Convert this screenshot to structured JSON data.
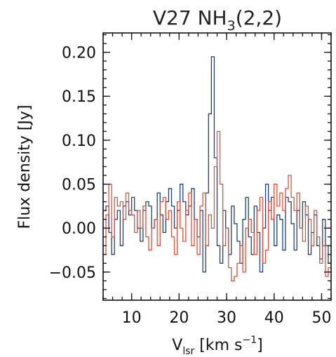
{
  "chart_data": {
    "type": "line",
    "step": true,
    "title": {
      "main": "V27 NH",
      "subscript": "3",
      "suffix": "(2,2)"
    },
    "xlabel": {
      "main": "V",
      "subscript": "lsr",
      "unit_open": " [km s",
      "superscript": "−1",
      "unit_close": "]"
    },
    "ylabel": "Flux density [Jy]",
    "xlim": [
      4,
      52
    ],
    "ylim": [
      -0.082,
      0.222
    ],
    "x_major_ticks": [
      10,
      20,
      30,
      40,
      50
    ],
    "x_minor_step": 2,
    "y_major_ticks": [
      -0.05,
      0.0,
      0.05,
      0.1,
      0.15,
      0.2
    ],
    "y_tick_labels": [
      "−0.05",
      "0.00",
      "0.05",
      "0.10",
      "0.15",
      "0.20"
    ],
    "y_minor_step": 0.01,
    "grid": false,
    "series": [
      {
        "color": "#1f3f7a",
        "x": [
          4.0,
          4.6,
          5.2,
          5.8,
          6.4,
          7.0,
          7.6,
          8.2,
          8.8,
          9.4,
          10.0,
          10.6,
          11.2,
          11.8,
          12.4,
          13.0,
          13.6,
          14.2,
          14.8,
          15.4,
          16.0,
          16.6,
          17.2,
          17.8,
          18.4,
          19.0,
          19.6,
          20.2,
          20.8,
          21.4,
          22.0,
          22.6,
          23.2,
          23.8,
          24.4,
          25.0,
          25.6,
          26.2,
          26.8,
          27.4,
          28.0,
          28.6,
          29.2,
          29.8,
          30.4,
          31.0,
          31.6,
          32.2,
          32.8,
          33.4,
          34.0,
          34.6,
          35.2,
          35.8,
          36.4,
          37.0,
          37.6,
          38.2,
          38.8,
          39.4,
          40.0,
          40.6,
          41.2,
          41.8,
          42.4,
          43.0,
          43.6,
          44.2,
          44.8,
          45.4,
          46.0,
          46.6,
          47.2,
          47.8,
          48.4,
          49.0,
          49.6,
          50.2,
          50.8,
          51.4
        ],
        "values": [
          0.02,
          0.025,
          -0.005,
          -0.03,
          0.01,
          0.02,
          -0.02,
          0.025,
          0.03,
          0.015,
          0.035,
          0.02,
          0.0,
          -0.015,
          0.02,
          0.03,
          0.025,
          0.0,
          0.01,
          0.04,
          0.015,
          -0.005,
          0.03,
          0.045,
          0.025,
          0.0,
          0.02,
          0.05,
          0.03,
          0.015,
          0.025,
          0.045,
          0.01,
          -0.01,
          0.02,
          -0.05,
          0.04,
          0.13,
          0.195,
          0.08,
          -0.02,
          -0.04,
          0.02,
          0.0,
          -0.03,
          0.025,
          0.005,
          -0.015,
          -0.04,
          0.01,
          0.035,
          -0.01,
          -0.03,
          0.025,
          -0.005,
          -0.05,
          0.0,
          0.05,
          0.02,
          0.035,
          -0.02,
          0.015,
          0.01,
          -0.025,
          0.035,
          0.03,
          0.005,
          -0.025,
          0.02,
          0.0,
          0.03,
          0.015,
          -0.03,
          -0.005,
          0.015,
          -0.02,
          -0.035,
          0.01,
          -0.02,
          -0.04
        ]
      },
      {
        "color": "#e0503a",
        "x": [
          4.0,
          4.6,
          5.2,
          5.8,
          6.4,
          7.0,
          7.6,
          8.2,
          8.8,
          9.4,
          10.0,
          10.6,
          11.2,
          11.8,
          12.4,
          13.0,
          13.6,
          14.2,
          14.8,
          15.4,
          16.0,
          16.6,
          17.2,
          17.8,
          18.4,
          19.0,
          19.6,
          20.2,
          20.8,
          21.4,
          22.0,
          22.6,
          23.2,
          23.8,
          24.4,
          25.0,
          25.6,
          26.2,
          26.8,
          27.4,
          28.0,
          28.6,
          29.2,
          29.8,
          30.4,
          31.0,
          31.6,
          32.2,
          32.8,
          33.4,
          34.0,
          34.6,
          35.2,
          35.8,
          36.4,
          37.0,
          37.6,
          38.2,
          38.8,
          39.4,
          40.0,
          40.6,
          41.2,
          41.8,
          42.4,
          43.0,
          43.6,
          44.2,
          44.8,
          45.4,
          46.0,
          46.6,
          47.2,
          47.8,
          48.4,
          49.0,
          49.6,
          50.2,
          50.8,
          51.4
        ],
        "values": [
          -0.03,
          0.015,
          0.05,
          -0.01,
          0.035,
          0.025,
          0.03,
          0.01,
          0.04,
          0.02,
          0.015,
          -0.005,
          0.02,
          0.0,
          0.025,
          -0.01,
          -0.025,
          0.0,
          0.01,
          -0.02,
          0.03,
          0.035,
          0.01,
          0.02,
          -0.01,
          -0.03,
          0.03,
          0.0,
          -0.015,
          0.02,
          0.04,
          -0.02,
          0.01,
          -0.03,
          0.025,
          0.04,
          -0.02,
          0.015,
          0.0,
          0.07,
          0.11,
          0.05,
          -0.02,
          0.0,
          -0.045,
          -0.06,
          -0.055,
          -0.04,
          -0.02,
          -0.05,
          0.0,
          0.01,
          -0.005,
          -0.03,
          0.02,
          0.035,
          -0.04,
          -0.025,
          0.03,
          0.01,
          0.05,
          0.025,
          0.04,
          0.02,
          0.045,
          0.06,
          0.035,
          0.02,
          0.04,
          0.0,
          -0.015,
          0.025,
          0.01,
          -0.02,
          0.02,
          -0.01,
          -0.04,
          -0.02,
          -0.055,
          -0.045
        ]
      }
    ]
  }
}
